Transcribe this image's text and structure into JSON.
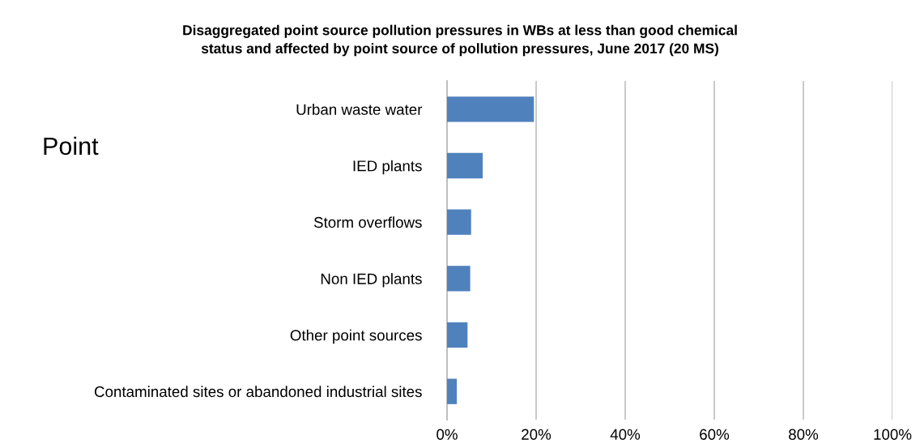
{
  "chart_data": {
    "type": "bar",
    "orientation": "horizontal",
    "title": "Disaggregated point source pollution pressures in WBs at less than good chemical\nstatus and affected by point source of pollution pressures, June 2017 (20 MS)",
    "categories": [
      "Urban waste water",
      "IED plants",
      "Storm overflows",
      "Non IED plants",
      "Other point sources",
      "Contaminated sites or abandoned industrial sites"
    ],
    "values": [
      19.5,
      8,
      5.4,
      5.2,
      4.6,
      2.2
    ],
    "color": "#4f81bd",
    "xlim": [
      0,
      100
    ],
    "xticks": [
      {
        "value": 0,
        "label": "0%"
      },
      {
        "value": 20,
        "label": "20%"
      },
      {
        "value": 40,
        "label": "40%"
      },
      {
        "value": 60,
        "label": "60%"
      },
      {
        "value": 80,
        "label": "80%"
      },
      {
        "value": 100,
        "label": "100%"
      }
    ],
    "grid": "x",
    "annotations": [
      "Point"
    ]
  }
}
